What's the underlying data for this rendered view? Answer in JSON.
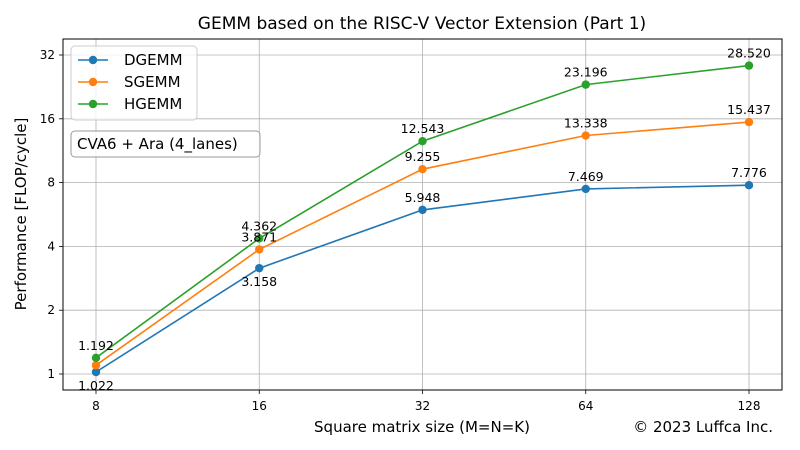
{
  "chart_data": {
    "type": "line",
    "title": "GEMM based on the RISC-V Vector Extension (Part 1)",
    "xlabel": "Square matrix size (M=N=K)",
    "ylabel": "Performance [FLOP/cycle]",
    "x_scale": "log2",
    "y_scale": "log2",
    "x": [
      8,
      16,
      32,
      64,
      128
    ],
    "x_ticks": [
      "8",
      "16",
      "32",
      "64",
      "128"
    ],
    "y_ticks": [
      "1",
      "2",
      "4",
      "8",
      "16",
      "32"
    ],
    "y_tick_values": [
      1,
      2,
      4,
      8,
      16,
      32
    ],
    "xlim": [
      8,
      128
    ],
    "ylim": [
      1,
      32
    ],
    "grid": true,
    "legend_position": "top-left",
    "annotation": "CVA6 + Ara (4_lanes)",
    "series": [
      {
        "name": "DGEMM",
        "color": "#1f77b4",
        "values": [
          1.022,
          3.158,
          5.948,
          7.469,
          7.776
        ],
        "labels": [
          "1.022",
          "3.158",
          "5.948",
          "7.469",
          "7.776"
        ]
      },
      {
        "name": "SGEMM",
        "color": "#ff7f0e",
        "values": [
          1.1,
          3.871,
          9.255,
          13.338,
          15.437
        ],
        "labels": [
          "",
          "3.871",
          "9.255",
          "13.338",
          "15.437"
        ]
      },
      {
        "name": "HGEMM",
        "color": "#2ca02c",
        "values": [
          1.192,
          4.362,
          12.543,
          23.196,
          28.52
        ],
        "labels": [
          "1.192",
          "4.362",
          "12.543",
          "23.196",
          "28.520"
        ]
      }
    ]
  },
  "copyright": "© 2023 Luffca Inc."
}
